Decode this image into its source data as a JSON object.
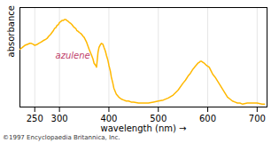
{
  "chart_data": {
    "type": "line",
    "xlabel": "wavelength (nm)",
    "ylabel": "absorbance",
    "x": [
      220,
      225,
      230,
      235,
      240,
      243,
      247,
      250,
      255,
      258,
      262,
      265,
      268,
      272,
      275,
      278,
      282,
      285,
      288,
      290,
      293,
      295,
      298,
      300,
      303,
      305,
      308,
      310,
      313,
      315,
      318,
      320,
      323,
      325,
      328,
      330,
      333,
      335,
      338,
      340,
      343,
      345,
      348,
      350,
      355,
      360,
      365,
      368,
      370,
      373,
      375,
      378,
      380,
      382,
      385,
      388,
      390,
      393,
      395,
      398,
      400,
      403,
      405,
      408,
      410,
      415,
      420,
      425,
      430,
      435,
      440,
      445,
      450,
      460,
      470,
      480,
      490,
      500,
      510,
      520,
      530,
      540,
      550,
      555,
      560,
      565,
      570,
      575,
      580,
      583,
      585,
      587,
      590,
      593,
      595,
      597,
      600,
      603,
      605,
      607,
      610,
      615,
      620,
      625,
      630,
      635,
      640,
      645,
      650,
      655,
      660,
      665,
      670,
      680,
      690,
      700,
      710,
      715
    ],
    "values": [
      0.58,
      0.6,
      0.62,
      0.63,
      0.64,
      0.64,
      0.63,
      0.62,
      0.63,
      0.64,
      0.65,
      0.66,
      0.67,
      0.68,
      0.69,
      0.71,
      0.73,
      0.75,
      0.77,
      0.79,
      0.8,
      0.82,
      0.83,
      0.85,
      0.86,
      0.87,
      0.87,
      0.88,
      0.88,
      0.87,
      0.86,
      0.85,
      0.84,
      0.83,
      0.81,
      0.8,
      0.79,
      0.77,
      0.76,
      0.75,
      0.74,
      0.73,
      0.71,
      0.7,
      0.65,
      0.58,
      0.52,
      0.48,
      0.44,
      0.42,
      0.4,
      0.55,
      0.6,
      0.62,
      0.64,
      0.63,
      0.6,
      0.56,
      0.52,
      0.47,
      0.42,
      0.36,
      0.3,
      0.24,
      0.19,
      0.13,
      0.1,
      0.08,
      0.07,
      0.06,
      0.06,
      0.05,
      0.05,
      0.04,
      0.04,
      0.04,
      0.05,
      0.06,
      0.07,
      0.09,
      0.12,
      0.17,
      0.24,
      0.27,
      0.31,
      0.34,
      0.38,
      0.41,
      0.44,
      0.45,
      0.46,
      0.46,
      0.45,
      0.44,
      0.43,
      0.42,
      0.41,
      0.4,
      0.38,
      0.36,
      0.33,
      0.3,
      0.26,
      0.22,
      0.18,
      0.14,
      0.1,
      0.08,
      0.06,
      0.05,
      0.04,
      0.04,
      0.03,
      0.04,
      0.04,
      0.04,
      0.03,
      0.03
    ],
    "color": "#FFB800",
    "xlim": [
      220,
      720
    ],
    "ylim": [
      0,
      1
    ],
    "xticks": [
      250,
      300,
      400,
      500,
      600,
      700
    ],
    "yticks": [],
    "tick_labels": "x",
    "grid": true,
    "annotations": [
      "azulene",
      "©1997 Encyclopaedia Britannica, Inc."
    ]
  }
}
